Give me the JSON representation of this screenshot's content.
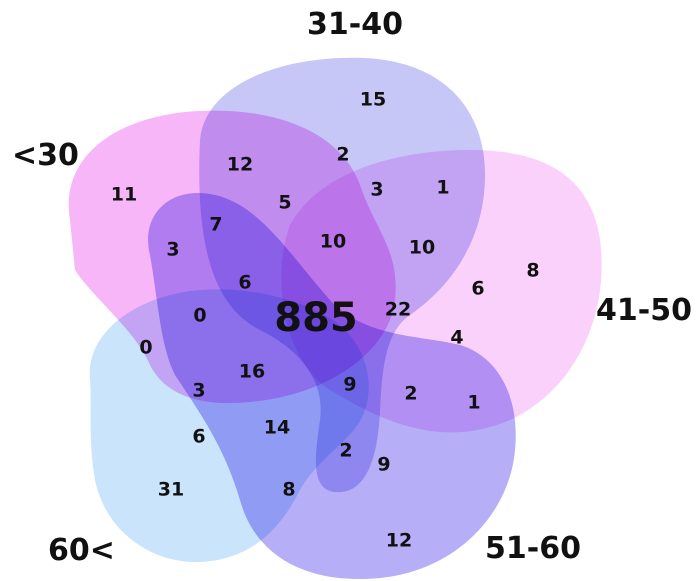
{
  "sets": [
    {
      "id": "set-under-30",
      "label": "<30",
      "color": "#f07af0",
      "opacity": 0.55
    },
    {
      "id": "set-31-40",
      "label": "31-40",
      "color": "#8e8ef0",
      "opacity": 0.5
    },
    {
      "id": "set-41-50",
      "label": "41-50",
      "color": "#f59af5",
      "opacity": 0.45
    },
    {
      "id": "set-51-60",
      "label": "51-60",
      "color": "#7a6cf0",
      "opacity": 0.55
    },
    {
      "id": "set-60-plus",
      "label": "60<",
      "color": "#9fd0f7",
      "opacity": 0.55
    }
  ],
  "regions": [
    {
      "id": "r1",
      "value": "15"
    },
    {
      "id": "r2",
      "value": "2"
    },
    {
      "id": "r3",
      "value": "12"
    },
    {
      "id": "r4",
      "value": "11"
    },
    {
      "id": "r5",
      "value": "3"
    },
    {
      "id": "r6",
      "value": "1"
    },
    {
      "id": "r7",
      "value": "5"
    },
    {
      "id": "r8",
      "value": "7"
    },
    {
      "id": "r9",
      "value": "10"
    },
    {
      "id": "r10",
      "value": "10"
    },
    {
      "id": "r11",
      "value": "8"
    },
    {
      "id": "r12",
      "value": "3"
    },
    {
      "id": "r13",
      "value": "6"
    },
    {
      "id": "r14",
      "value": "6"
    },
    {
      "id": "r15",
      "value": "0"
    },
    {
      "id": "r16",
      "value": "885"
    },
    {
      "id": "r17",
      "value": "22"
    },
    {
      "id": "r18",
      "value": "4"
    },
    {
      "id": "r19",
      "value": "0"
    },
    {
      "id": "r20",
      "value": "16"
    },
    {
      "id": "r21",
      "value": "9"
    },
    {
      "id": "r22",
      "value": "2"
    },
    {
      "id": "r23",
      "value": "1"
    },
    {
      "id": "r24",
      "value": "3"
    },
    {
      "id": "r25",
      "value": "14"
    },
    {
      "id": "r26",
      "value": "6"
    },
    {
      "id": "r27",
      "value": "2"
    },
    {
      "id": "r28",
      "value": "9"
    },
    {
      "id": "r29",
      "value": "31"
    },
    {
      "id": "r30",
      "value": "8"
    },
    {
      "id": "r31",
      "value": "12"
    }
  ]
}
